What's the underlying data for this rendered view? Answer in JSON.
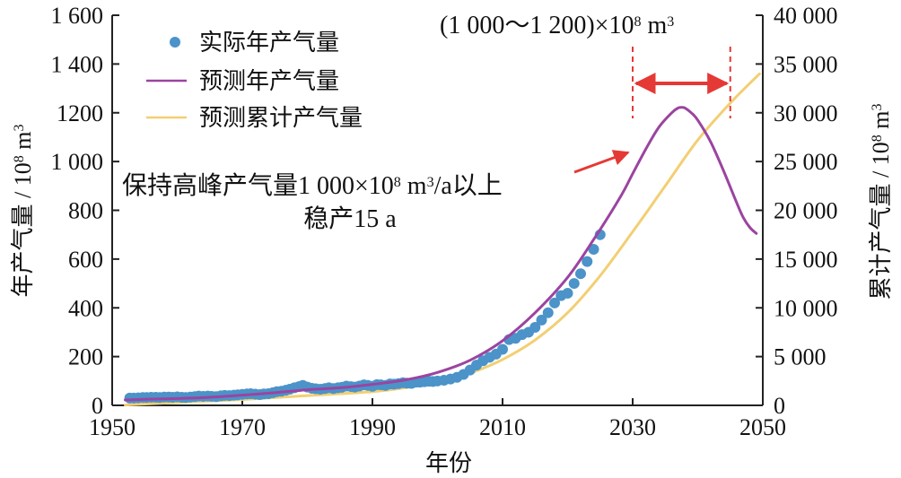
{
  "chart_data": {
    "type": "line",
    "x_axis": {
      "label": "年份",
      "range": [
        1950,
        2050
      ],
      "ticks": [
        1950,
        1970,
        1990,
        2010,
        2030,
        2050
      ]
    },
    "y_left": {
      "label_main": "年产气量 / 10",
      "label_sup": "8",
      "label_unit": " m",
      "label_unit_sup": "3",
      "range": [
        0,
        1600
      ],
      "ticks": [
        0,
        200,
        400,
        600,
        800,
        1000,
        1200,
        1400,
        1600
      ],
      "tick_labels": [
        "0",
        "200",
        "400",
        "600",
        "800",
        "1 000",
        "1200",
        "1 400",
        "1 600"
      ]
    },
    "y_right": {
      "label_main": "累计产气量 / 10",
      "label_sup": "8",
      "label_unit": " m",
      "label_unit_sup": "3",
      "range": [
        0,
        40000
      ],
      "ticks": [
        0,
        5000,
        10000,
        15000,
        20000,
        25000,
        30000,
        35000,
        40000
      ],
      "tick_labels": [
        "0",
        "5 000",
        "10 000",
        "15 000",
        "20 000",
        "25 000",
        "30 000",
        "35 000",
        "40 000"
      ]
    },
    "legend": {
      "placement": "top-left",
      "items": [
        {
          "label": "实际年产气量",
          "kind": "marker",
          "color": "#4b93c9"
        },
        {
          "label": "预测年产气量",
          "kind": "line",
          "color": "#9b44a0"
        },
        {
          "label": "预测累计产气量",
          "kind": "line",
          "color": "#f2cf73"
        }
      ]
    },
    "series": [
      {
        "name": "实际年产气量",
        "kind": "scatter",
        "axis": "left",
        "color": "#4b93c9",
        "x": [
          1952.7,
          1953.3,
          1954,
          1954.7,
          1955.3,
          1956,
          1956.7,
          1957.3,
          1958,
          1958.7,
          1959.3,
          1960,
          1960.7,
          1961.3,
          1962,
          1962.7,
          1963.3,
          1964,
          1964.7,
          1965.3,
          1966,
          1966.7,
          1967.3,
          1968,
          1968.7,
          1969.3,
          1970,
          1970.7,
          1971.3,
          1972,
          1972.7,
          1973.3,
          1974,
          1974.7,
          1975.3,
          1976,
          1976.7,
          1977.3,
          1978,
          1978.7,
          1979.3,
          1980,
          1980.7,
          1981.3,
          1982,
          1982.7,
          1983.3,
          1984,
          1984.7,
          1985.3,
          1986,
          1986.7,
          1987.3,
          1988,
          1988.7,
          1989.3,
          1990,
          1990.7,
          1991.3,
          1992,
          1992.7,
          1993.3,
          1994,
          1994.7,
          1995.3,
          1996,
          1996.7,
          1997.3,
          1998,
          1998.7,
          1999.3,
          2000,
          2001,
          2002,
          2003,
          2004,
          2005,
          2006,
          2007,
          2008,
          2009,
          2010,
          2011,
          2012,
          2013,
          2014,
          2015,
          2016,
          2017,
          2018,
          2019,
          2020,
          2021,
          2022,
          2023,
          2024,
          2025
        ],
        "y": [
          30,
          30,
          31,
          32,
          32,
          33,
          33,
          32,
          34,
          34,
          33,
          35,
          33,
          32,
          34,
          36,
          38,
          37,
          38,
          37,
          36,
          39,
          41,
          40,
          42,
          43,
          45,
          47,
          48,
          46,
          44,
          47,
          48,
          52,
          56,
          58,
          62,
          66,
          72,
          77,
          82,
          75,
          70,
          68,
          66,
          69,
          72,
          69,
          72,
          74,
          79,
          77,
          75,
          79,
          84,
          82,
          78,
          85,
          84,
          82,
          88,
          87,
          89,
          93,
          91,
          90,
          95,
          95,
          97,
          99,
          98,
          100,
          103,
          108,
          115,
          127,
          145,
          165,
          183,
          197,
          210,
          230,
          270,
          275,
          290,
          300,
          320,
          350,
          380,
          420,
          450,
          460,
          500,
          540,
          590,
          640,
          700
        ]
      },
      {
        "name": "预测年产气量",
        "kind": "line",
        "axis": "left",
        "color": "#9b44a0",
        "x": [
          1952,
          1955,
          1960,
          1965,
          1970,
          1975,
          1980,
          1985,
          1990,
          1995,
          2000,
          2005,
          2010,
          2015,
          2020,
          2024,
          2028,
          2030,
          2032,
          2034,
          2036,
          2037,
          2037.5,
          2038,
          2039,
          2040,
          2042,
          2044,
          2046,
          2047,
          2048,
          2049
        ],
        "y": [
          22,
          25,
          28,
          33,
          42,
          52,
          64,
          72,
          86,
          104,
          135,
          185,
          265,
          380,
          525,
          680,
          850,
          950,
          1050,
          1140,
          1200,
          1220,
          1222,
          1220,
          1200,
          1170,
          1080,
          960,
          830,
          770,
          730,
          705
        ]
      },
      {
        "name": "预测累计产气量",
        "kind": "line",
        "axis": "right",
        "color": "#f2cf73",
        "x": [
          1952,
          1960,
          1970,
          1980,
          1990,
          1995,
          2000,
          2005,
          2010,
          2015,
          2020,
          2025,
          2030,
          2035,
          2040,
          2045,
          2049.5
        ],
        "y": [
          40,
          300,
          600,
          1000,
          1400,
          1800,
          2400,
          3300,
          4700,
          6700,
          9500,
          13300,
          17800,
          22500,
          27200,
          31000,
          34000
        ]
      }
    ],
    "annotations": {
      "top_label": {
        "open": "(1 000～1 200)",
        "times": "×10",
        "sup": "8",
        "unit": " m",
        "unit_sup": "3"
      },
      "span_range": [
        2030,
        2045
      ],
      "span_note_line1_a": "保持高峰产气量1 000×10",
      "span_note_line1_sup": "8",
      "span_note_line1_b": " m",
      "span_note_line1_sup2": "3",
      "span_note_line1_c": "/a以上",
      "span_note_line2": "稳产15 a",
      "arrow_color": "#e53935",
      "dashed_color": "#e53935"
    }
  }
}
